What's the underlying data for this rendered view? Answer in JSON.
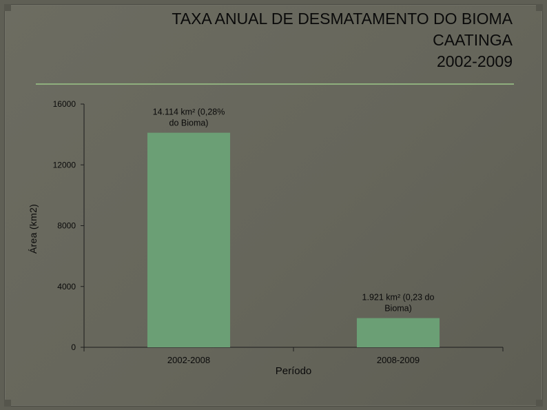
{
  "chart_data": {
    "type": "bar",
    "title": [
      "TAXA ANUAL DE DESMATAMENTO DO BIOMA",
      "CAATINGA",
      "2002-2009"
    ],
    "xlabel": "Período",
    "ylabel": "Área (km2)",
    "categories": [
      "2002-2008",
      "2008-2009"
    ],
    "values": [
      14114,
      1921
    ],
    "data_labels": [
      [
        "14.114 km² (0,28%",
        "do Bioma)"
      ],
      [
        "1.921 km² (0,23 do",
        "Bioma)"
      ]
    ],
    "yticks": [
      0,
      4000,
      8000,
      12000,
      16000
    ],
    "ylim": [
      0,
      16000
    ],
    "grid": false,
    "legend": "none",
    "bar_color": "#6b9f75",
    "axis_color": "#1c1c1c",
    "text_color": "#0a0a0a",
    "title_color": "#0a0a0a",
    "rule_color": "#8fb07e"
  }
}
